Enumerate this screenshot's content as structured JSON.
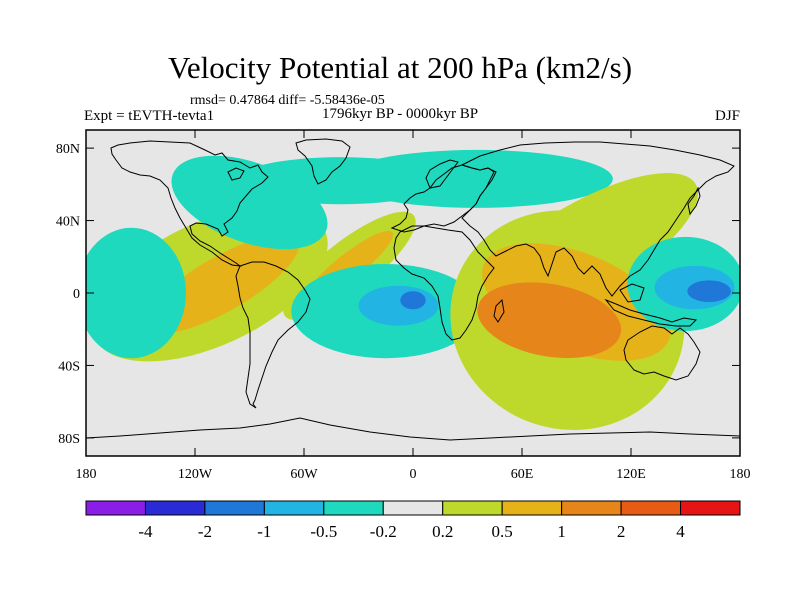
{
  "chart_data": {
    "type": "heatmap",
    "title": "Velocity Potential at 200 hPa (km2/s)",
    "stats_text": "rmsd= 0.47864 diff= -5.58436e-05",
    "left_label": "Expt = tEVTH-tevta1",
    "center_label": "1796kyr BP - 0000kyr BP",
    "right_label": "DJF",
    "x_range": [
      -180,
      180
    ],
    "y_range": [
      -90,
      90
    ],
    "x_ticks": [
      {
        "value": -180,
        "label": "180"
      },
      {
        "value": -120,
        "label": "120W"
      },
      {
        "value": -60,
        "label": "60W"
      },
      {
        "value": 0,
        "label": "0"
      },
      {
        "value": 60,
        "label": "60E"
      },
      {
        "value": 120,
        "label": "120E"
      },
      {
        "value": 180,
        "label": "180"
      }
    ],
    "y_ticks": [
      {
        "value": 80,
        "label": "80N"
      },
      {
        "value": 40,
        "label": "40N"
      },
      {
        "value": 0,
        "label": "0"
      },
      {
        "value": -40,
        "label": "40S"
      },
      {
        "value": -80,
        "label": "80S"
      }
    ],
    "colorbar": {
      "colors": [
        "#8a1ee6",
        "#2b2bd6",
        "#1f78d8",
        "#22b5e3",
        "#1ed9bd",
        "#e6e6e6",
        "#bfd82c",
        "#e6b21a",
        "#e6851a",
        "#e65c14",
        "#e61414"
      ],
      "levels": [
        "-4",
        "-2",
        "-1",
        "-0.5",
        "-0.2",
        "0.2",
        "0.5",
        "1",
        "2",
        "4"
      ]
    },
    "field": [
      {
        "level": 6,
        "lon": -112,
        "lat": 5,
        "rx": 70,
        "ry": 34,
        "rot": -25
      },
      {
        "level": 7,
        "lon": -105,
        "lat": 5,
        "rx": 48,
        "ry": 15,
        "rot": -30
      },
      {
        "level": 6,
        "lon": -35,
        "lat": 15,
        "rx": 45,
        "ry": 14,
        "rot": -38
      },
      {
        "level": 7,
        "lon": -35,
        "lat": 15,
        "rx": 30,
        "ry": 7,
        "rot": -38
      },
      {
        "level": 4,
        "lon": -90,
        "lat": 50,
        "rx": 45,
        "ry": 22,
        "rot": 20
      },
      {
        "level": 4,
        "lon": -40,
        "lat": 62,
        "rx": 58,
        "ry": 13,
        "rot": 0
      },
      {
        "level": 4,
        "lon": 35,
        "lat": 63,
        "rx": 75,
        "ry": 16,
        "rot": 0
      },
      {
        "level": 4,
        "lon": -155,
        "lat": 0,
        "rx": 30,
        "ry": 36,
        "rot": 0
      },
      {
        "level": 4,
        "lon": -15,
        "lat": -10,
        "rx": 52,
        "ry": 26,
        "rot": 0
      },
      {
        "level": 3,
        "lon": -8,
        "lat": -7,
        "rx": 22,
        "ry": 11,
        "rot": 0
      },
      {
        "level": 2,
        "lon": 0,
        "lat": -4,
        "rx": 7,
        "ry": 5,
        "rot": 0
      },
      {
        "level": 6,
        "lon": 85,
        "lat": -15,
        "rx": 65,
        "ry": 60,
        "rot": 20
      },
      {
        "level": 6,
        "lon": 95,
        "lat": 25,
        "rx": 70,
        "ry": 25,
        "rot": -30
      },
      {
        "level": 7,
        "lon": 90,
        "lat": -5,
        "rx": 55,
        "ry": 27,
        "rot": 22
      },
      {
        "level": 8,
        "lon": 75,
        "lat": -15,
        "rx": 40,
        "ry": 20,
        "rot": 10
      },
      {
        "level": 4,
        "lon": 150,
        "lat": 5,
        "rx": 32,
        "ry": 26,
        "rot": 0
      },
      {
        "level": 3,
        "lon": 155,
        "lat": 3,
        "rx": 22,
        "ry": 12,
        "rot": 0
      },
      {
        "level": 2,
        "lon": 163,
        "lat": 1,
        "rx": 12,
        "ry": 6,
        "rot": 0
      }
    ]
  }
}
